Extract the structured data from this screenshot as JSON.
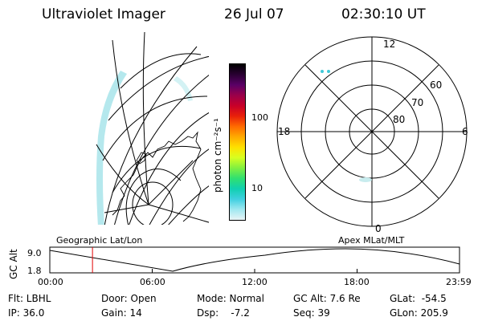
{
  "header": {
    "instrument": "Ultraviolet Imager",
    "date": "26 Jul 07",
    "time": "02:30:10 UT"
  },
  "colorbar": {
    "label": "photon cm⁻²s⁻¹",
    "ticks": [
      "100",
      "10"
    ],
    "scale": "log",
    "colors": [
      "#000000",
      "#2a0033",
      "#5a0066",
      "#9a004a",
      "#c80028",
      "#e8200a",
      "#ff6a00",
      "#ffaa00",
      "#ffe000",
      "#d8ff20",
      "#80f040",
      "#30e070",
      "#10d0b0",
      "#40d0e0",
      "#a0e8f0",
      "#e8f4f6"
    ]
  },
  "geo_panel": {
    "title": "Geographic Lat/Lon"
  },
  "polar_panel": {
    "title": "Apex MLat/MLT",
    "mlt_labels": [
      "12",
      "18",
      "6",
      "0"
    ],
    "mlat_labels": [
      "60",
      "70",
      "80"
    ]
  },
  "timeline": {
    "ylabel": "GC Alt",
    "ytick_top": "9.0",
    "ytick_bottom": "1.8",
    "xticks": [
      "00:00",
      "06:00",
      "12:00",
      "18:00",
      "23:59"
    ],
    "current_time_hours": 2.5
  },
  "params": {
    "filter": "Flt: LBHL",
    "ip": "IP: 36.0",
    "door": "Door: Open",
    "gain": "Gain: 14",
    "mode": "Mode: Normal",
    "dsp": "Dsp:    -7.2",
    "gcalt": "GC Alt: 7.6 Re",
    "seq": "Seq: 39",
    "glat": "GLat:  -54.5",
    "glon": "GLon: 205.9"
  }
}
